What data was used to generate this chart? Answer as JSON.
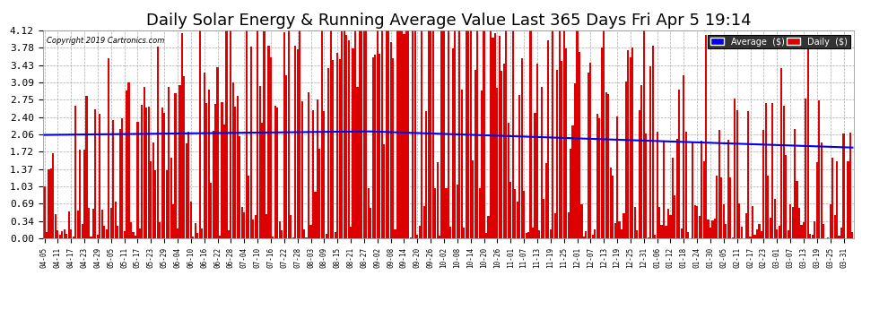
{
  "title": "Daily Solar Energy & Running Average Value Last 365 Days Fri Apr 5 19:14",
  "copyright": "Copyright 2019 Cartronics.com",
  "legend_avg": "Average  ($)",
  "legend_daily": "Daily  ($)",
  "yticks": [
    0.0,
    0.34,
    0.69,
    1.03,
    1.37,
    1.72,
    2.06,
    2.4,
    2.75,
    3.09,
    3.43,
    3.78,
    4.12
  ],
  "ymax": 4.12,
  "bar_color": "#dd0000",
  "avg_line_color": "#0000ee",
  "bg_color": "#ffffff",
  "grid_color": "#aaaaaa",
  "title_fontsize": 13,
  "xlabel_fontsize": 5.5,
  "ylabel_fontsize": 8,
  "bar_width": 0.85,
  "avg_start": 2.05,
  "avg_end": 1.8,
  "xtick_labels": [
    "04-05",
    "04-11",
    "04-17",
    "04-23",
    "04-29",
    "05-05",
    "05-11",
    "05-17",
    "05-23",
    "05-29",
    "06-04",
    "06-10",
    "06-16",
    "06-22",
    "06-28",
    "07-04",
    "07-10",
    "07-16",
    "07-22",
    "07-28",
    "08-03",
    "08-09",
    "08-15",
    "08-21",
    "08-27",
    "09-02",
    "09-08",
    "09-14",
    "09-20",
    "09-26",
    "10-02",
    "10-08",
    "10-14",
    "10-20",
    "10-26",
    "11-01",
    "11-07",
    "11-13",
    "11-19",
    "11-25",
    "12-01",
    "12-07",
    "12-13",
    "12-19",
    "12-25",
    "12-31",
    "01-06",
    "01-12",
    "01-18",
    "01-24",
    "01-30",
    "02-05",
    "02-11",
    "02-17",
    "02-23",
    "03-01",
    "03-07",
    "03-13",
    "03-19",
    "03-25",
    "03-31"
  ],
  "xtick_positions": [
    0,
    6,
    12,
    18,
    24,
    30,
    36,
    42,
    48,
    54,
    60,
    66,
    72,
    78,
    84,
    90,
    96,
    102,
    108,
    114,
    120,
    126,
    132,
    138,
    144,
    150,
    156,
    162,
    168,
    174,
    180,
    186,
    192,
    198,
    204,
    210,
    216,
    222,
    228,
    234,
    240,
    246,
    252,
    258,
    264,
    270,
    276,
    282,
    288,
    294,
    300,
    306,
    312,
    318,
    324,
    330,
    336,
    342,
    348,
    354,
    360
  ]
}
